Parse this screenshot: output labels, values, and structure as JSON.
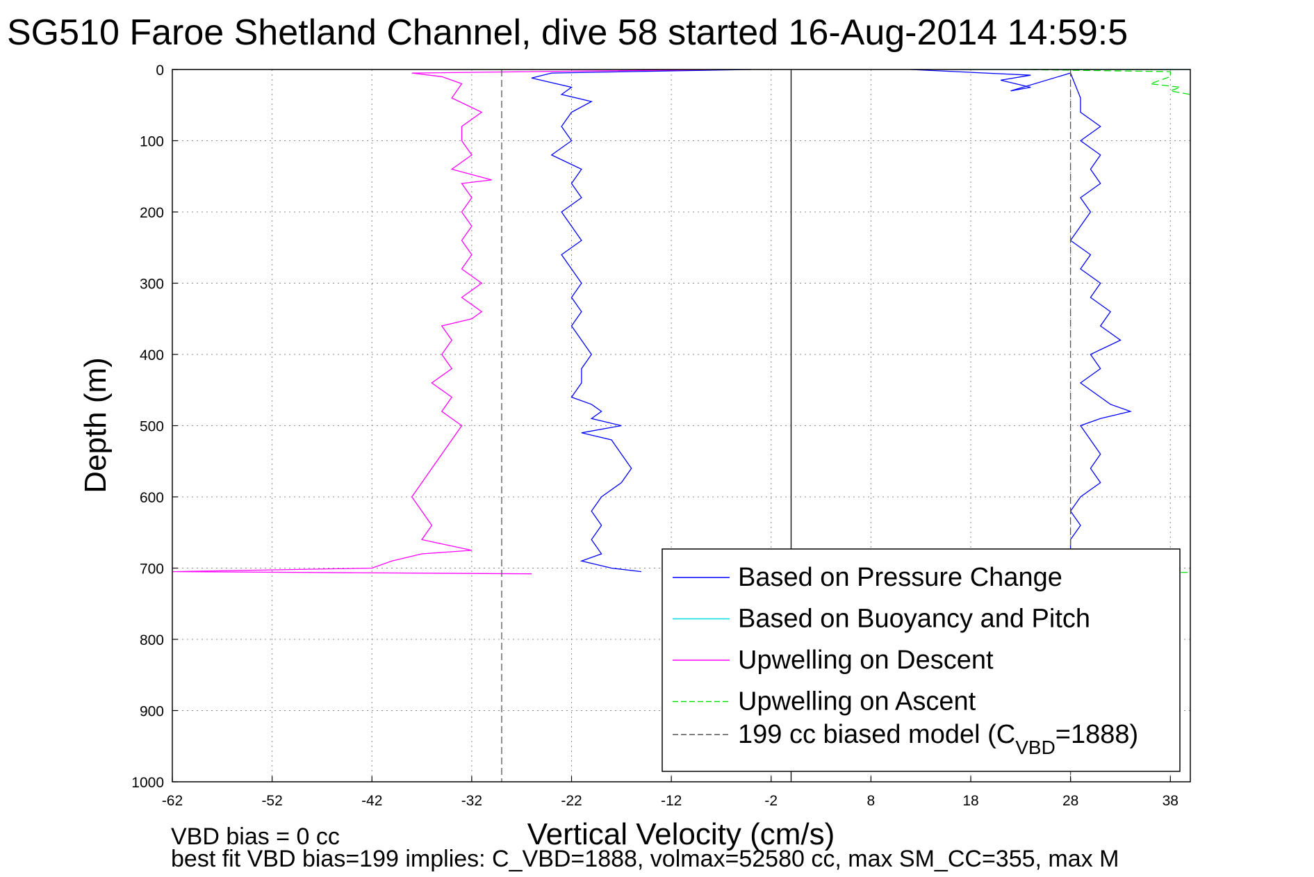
{
  "chart_data": {
    "type": "line",
    "title": "SG510 Faroe Shetland Channel, dive 58 started 16-Aug-2014 14:59:5",
    "xlabel": "Vertical Velocity (cm/s)",
    "ylabel": "Depth (m)",
    "xlim": [
      -62,
      40
    ],
    "ylim": [
      0,
      1000
    ],
    "y_reversed": true,
    "x_ticks": [
      "-62",
      "-52",
      "-42",
      "-32",
      "-22",
      "-12",
      "-2",
      "8",
      "18",
      "28",
      "38"
    ],
    "y_ticks": [
      "0",
      "100",
      "200",
      "300",
      "400",
      "500",
      "600",
      "700",
      "800",
      "900",
      "1000"
    ],
    "grid": true,
    "legend_position": "bottom-right",
    "legend": [
      {
        "label": "Based on Pressure Change",
        "color": "#0000ff",
        "dash": "solid"
      },
      {
        "label": "Based on Buoyancy and Pitch",
        "color": "#00e0e0",
        "dash": "solid"
      },
      {
        "label": "Upwelling on Descent",
        "color": "#ff00ff",
        "dash": "solid"
      },
      {
        "label": "Upwelling on Ascent",
        "color": "#00e000",
        "dash": "dashed"
      },
      {
        "label_main": "199 cc biased model (C",
        "label_sub": "VBD",
        "label_end": "=1888)",
        "color": "#555555",
        "dash": "dashed"
      }
    ],
    "footnotes": [
      "VBD bias = 0 cc",
      "best fit VBD bias=199 implies: C_VBD=1888, volmax=52580 cc, max SM_CC=355, max M"
    ],
    "series": [
      {
        "key": "pressure_desc",
        "color": "#0000ff",
        "points": [
          [
            -4,
            0
          ],
          [
            -24,
            5
          ],
          [
            -26,
            12
          ],
          [
            -22,
            25
          ],
          [
            -23,
            35
          ],
          [
            -20,
            45
          ],
          [
            -22,
            60
          ],
          [
            -23,
            80
          ],
          [
            -22,
            100
          ],
          [
            -24,
            120
          ],
          [
            -21,
            140
          ],
          [
            -22,
            160
          ],
          [
            -21,
            180
          ],
          [
            -23,
            200
          ],
          [
            -22,
            220
          ],
          [
            -21,
            240
          ],
          [
            -23,
            260
          ],
          [
            -22,
            280
          ],
          [
            -21,
            300
          ],
          [
            -22,
            320
          ],
          [
            -21,
            340
          ],
          [
            -22,
            360
          ],
          [
            -21,
            380
          ],
          [
            -20,
            400
          ],
          [
            -21,
            420
          ],
          [
            -21,
            440
          ],
          [
            -22,
            460
          ],
          [
            -20,
            470
          ],
          [
            -19,
            480
          ],
          [
            -20,
            490
          ],
          [
            -17,
            500
          ],
          [
            -21,
            510
          ],
          [
            -18,
            520
          ],
          [
            -17,
            540
          ],
          [
            -16,
            560
          ],
          [
            -17,
            580
          ],
          [
            -19,
            600
          ],
          [
            -20,
            620
          ],
          [
            -19,
            640
          ],
          [
            -20,
            660
          ],
          [
            -19,
            680
          ],
          [
            -21,
            690
          ],
          [
            -18,
            700
          ],
          [
            -15,
            705
          ]
        ]
      },
      {
        "key": "pressure_asc",
        "color": "#0000ff",
        "points": [
          [
            12,
            0
          ],
          [
            24,
            8
          ],
          [
            21,
            15
          ],
          [
            24,
            25
          ],
          [
            22,
            30
          ],
          [
            28,
            5
          ],
          [
            29,
            40
          ],
          [
            29,
            60
          ],
          [
            31,
            80
          ],
          [
            29,
            100
          ],
          [
            31,
            120
          ],
          [
            30,
            140
          ],
          [
            31,
            160
          ],
          [
            29,
            180
          ],
          [
            30,
            200
          ],
          [
            29,
            220
          ],
          [
            28,
            240
          ],
          [
            30,
            260
          ],
          [
            29,
            280
          ],
          [
            31,
            300
          ],
          [
            30,
            320
          ],
          [
            32,
            340
          ],
          [
            31,
            360
          ],
          [
            33,
            380
          ],
          [
            30,
            400
          ],
          [
            31,
            420
          ],
          [
            29,
            440
          ],
          [
            31,
            460
          ],
          [
            32,
            470
          ],
          [
            34,
            480
          ],
          [
            31,
            490
          ],
          [
            29,
            500
          ],
          [
            30,
            520
          ],
          [
            31,
            540
          ],
          [
            30,
            560
          ],
          [
            31,
            580
          ],
          [
            29,
            600
          ],
          [
            28,
            620
          ],
          [
            29,
            640
          ],
          [
            28,
            660
          ],
          [
            28,
            675
          ]
        ]
      },
      {
        "key": "buoyancy_pitch",
        "color": "#00e0e0",
        "points": [
          [
            17,
            0
          ],
          [
            40,
            0
          ]
        ]
      },
      {
        "key": "upwell_desc",
        "color": "#ff00ff",
        "points": [
          [
            -7,
            0
          ],
          [
            -38,
            5
          ],
          [
            -35,
            10
          ],
          [
            -33,
            20
          ],
          [
            -34,
            40
          ],
          [
            -31,
            60
          ],
          [
            -33,
            80
          ],
          [
            -33,
            100
          ],
          [
            -32,
            120
          ],
          [
            -34,
            140
          ],
          [
            -30,
            155
          ],
          [
            -33,
            160
          ],
          [
            -32,
            180
          ],
          [
            -33,
            200
          ],
          [
            -32,
            220
          ],
          [
            -33,
            240
          ],
          [
            -32,
            260
          ],
          [
            -33,
            280
          ],
          [
            -31,
            300
          ],
          [
            -33,
            320
          ],
          [
            -31,
            340
          ],
          [
            -32,
            350
          ],
          [
            -35,
            360
          ],
          [
            -34,
            380
          ],
          [
            -35,
            400
          ],
          [
            -34,
            420
          ],
          [
            -36,
            440
          ],
          [
            -34,
            460
          ],
          [
            -35,
            480
          ],
          [
            -33,
            500
          ],
          [
            -34,
            520
          ],
          [
            -35,
            540
          ],
          [
            -36,
            560
          ],
          [
            -37,
            580
          ],
          [
            -38,
            600
          ],
          [
            -37,
            620
          ],
          [
            -36,
            640
          ],
          [
            -37,
            660
          ],
          [
            -32,
            675
          ],
          [
            -37,
            680
          ],
          [
            -40,
            690
          ],
          [
            -42,
            700
          ],
          [
            -62,
            705
          ],
          [
            -26,
            708
          ]
        ]
      },
      {
        "key": "upwell_asc",
        "color": "#00e000",
        "dashed": true,
        "points": [
          [
            23,
            0
          ],
          [
            38,
            3
          ],
          [
            38,
            10
          ],
          [
            36,
            20
          ],
          [
            39,
            25
          ],
          [
            38,
            30
          ],
          [
            40,
            35
          ]
        ]
      },
      {
        "key": "upwell_asc_bottom",
        "color": "#00e000",
        "dashed": true,
        "points": [
          [
            38,
            706
          ],
          [
            40,
            706
          ]
        ]
      },
      {
        "key": "model_desc",
        "color": "#555555",
        "dashed": true,
        "points": [
          [
            -29,
            0
          ],
          [
            -29,
            1000
          ]
        ]
      },
      {
        "key": "model_asc",
        "color": "#555555",
        "dashed": true,
        "points": [
          [
            28,
            0
          ],
          [
            28,
            1000
          ]
        ]
      },
      {
        "key": "zero_ref",
        "color": "#000000",
        "points": [
          [
            0,
            0
          ],
          [
            0,
            1000
          ]
        ]
      }
    ]
  }
}
